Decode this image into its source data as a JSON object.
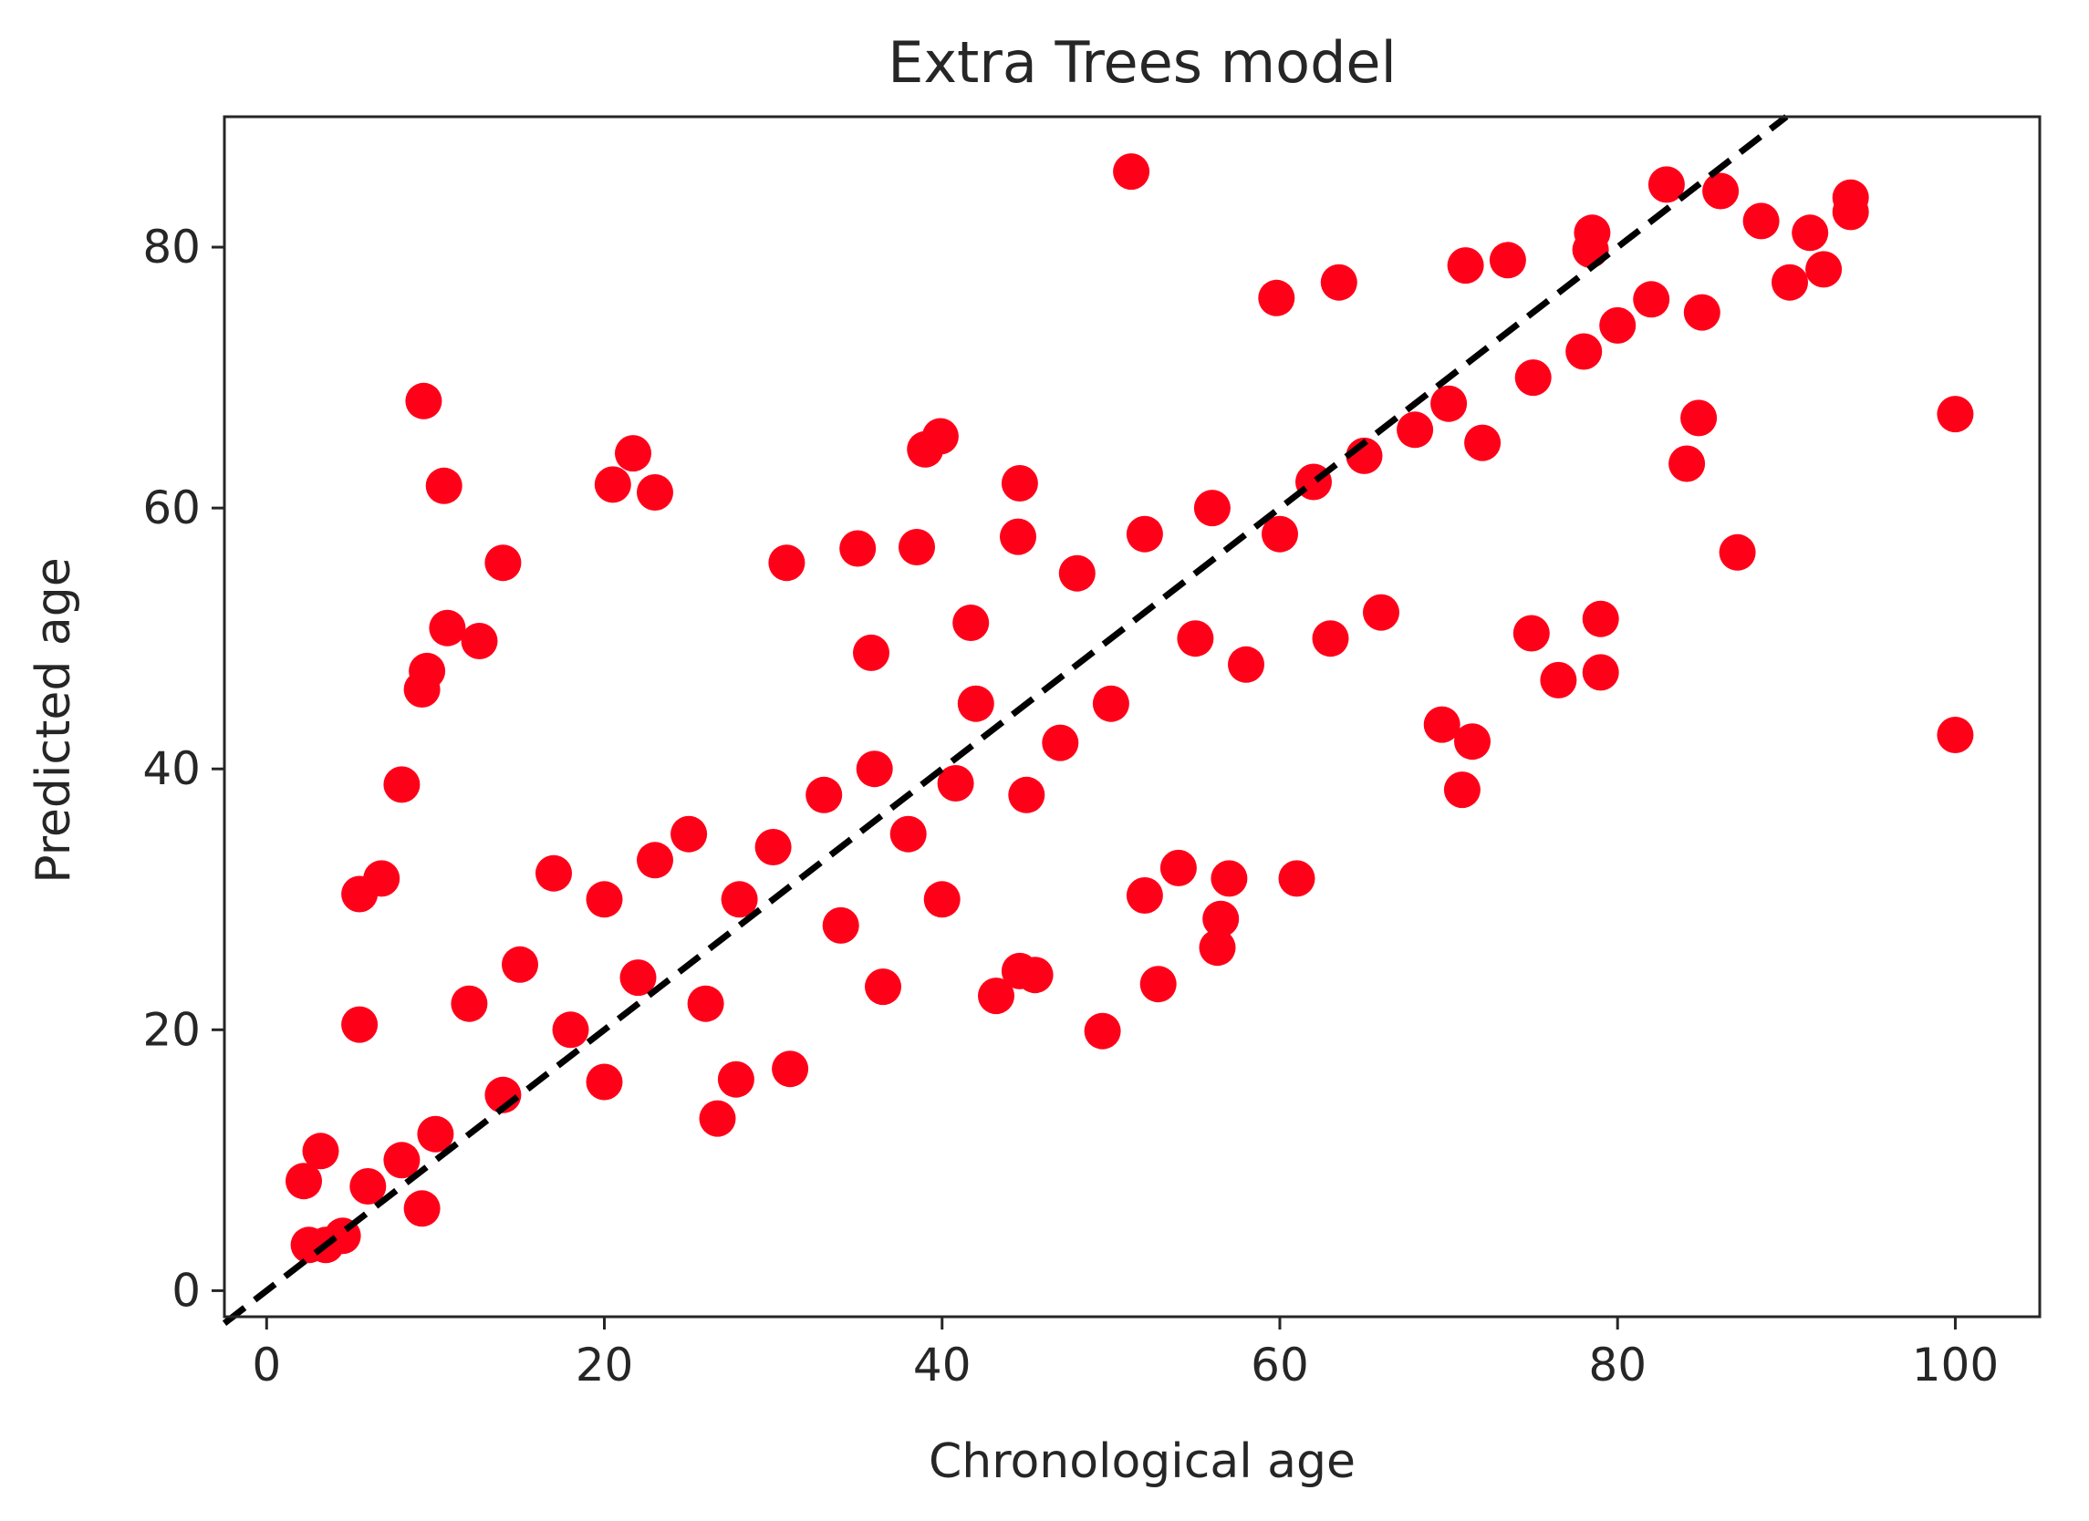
{
  "chart_data": {
    "type": "scatter",
    "title": "Extra Trees model",
    "xlabel": "Chronological age",
    "ylabel": "Predicted age",
    "xlim": [
      -2.5,
      105
    ],
    "ylim": [
      -2,
      90
    ],
    "xticks": [
      0,
      20,
      40,
      60,
      80,
      100
    ],
    "yticks": [
      0,
      20,
      40,
      60,
      80
    ],
    "grid": false,
    "legend": "none",
    "point_color": "#ff0019",
    "reference_line": {
      "style": "dashed",
      "color": "#000000",
      "from": [
        -2.5,
        -2.5
      ],
      "to": [
        90,
        90
      ]
    },
    "series": [
      {
        "points": [
          [
            9.3,
            68.2
          ],
          [
            10.5,
            61.7
          ],
          [
            21.7,
            64.2
          ],
          [
            20.5,
            61.8
          ],
          [
            23.0,
            61.2
          ],
          [
            14.0,
            55.8
          ],
          [
            51.2,
            85.8
          ],
          [
            100.0,
            67.2
          ],
          [
            100.0,
            42.6
          ],
          [
            87.1,
            56.6
          ],
          [
            84.1,
            63.4
          ],
          [
            84.8,
            66.9
          ],
          [
            30.8,
            55.8
          ],
          [
            35.0,
            56.9
          ],
          [
            38.5,
            57.0
          ],
          [
            39.0,
            64.5
          ],
          [
            39.9,
            65.5
          ],
          [
            49.5,
            19.9
          ],
          [
            52.8,
            23.5
          ],
          [
            56.3,
            26.3
          ],
          [
            56.5,
            28.5
          ],
          [
            31.0,
            17.0
          ],
          [
            27.8,
            16.2
          ],
          [
            26.7,
            13.2
          ],
          [
            9.2,
            6.3
          ],
          [
            2.5,
            3.5
          ],
          [
            3.5,
            3.5
          ],
          [
            4.5,
            4.2
          ],
          [
            2.2,
            8.4
          ],
          [
            3.2,
            10.7
          ],
          [
            5.5,
            20.4
          ],
          [
            5.5,
            30.4
          ],
          [
            6.8,
            31.6
          ],
          [
            9.2,
            46.1
          ],
          [
            9.5,
            47.5
          ],
          [
            10.7,
            50.8
          ],
          [
            12.6,
            49.8
          ],
          [
            8.0,
            38.8
          ],
          [
            93.8,
            83.8
          ],
          [
            93.8,
            82.7
          ],
          [
            86.1,
            84.3
          ],
          [
            88.5,
            82.0
          ],
          [
            91.4,
            81.1
          ],
          [
            90.2,
            77.3
          ],
          [
            92.2,
            78.3
          ],
          [
            82.9,
            84.8
          ],
          [
            78.5,
            81.1
          ],
          [
            79.0,
            47.4
          ],
          [
            76.5,
            46.8
          ],
          [
            79.0,
            51.5
          ],
          [
            74.9,
            50.4
          ],
          [
            70.8,
            38.4
          ],
          [
            71.4,
            42.1
          ],
          [
            69.6,
            43.4
          ],
          [
            61.0,
            31.6
          ],
          [
            57.0,
            31.6
          ],
          [
            54.0,
            32.4
          ],
          [
            52.0,
            30.3
          ],
          [
            36.5,
            23.3
          ],
          [
            43.2,
            22.6
          ],
          [
            44.6,
            24.5
          ],
          [
            45.5,
            24.2
          ],
          [
            40.8,
            38.9
          ],
          [
            35.8,
            48.9
          ],
          [
            41.7,
            51.2
          ],
          [
            44.5,
            57.8
          ],
          [
            44.6,
            61.9
          ],
          [
            59.8,
            76.1
          ],
          [
            63.5,
            77.3
          ],
          [
            71.0,
            78.6
          ],
          [
            73.5,
            79.0
          ],
          [
            78.4,
            79.8
          ],
          [
            17.0,
            32.0
          ],
          [
            20.0,
            30.0
          ],
          [
            23.0,
            33.0
          ],
          [
            25.0,
            35.0
          ],
          [
            15.0,
            25.0
          ],
          [
            12.0,
            22.0
          ],
          [
            18.0,
            20.0
          ],
          [
            22.0,
            24.0
          ],
          [
            28.0,
            30.0
          ],
          [
            30.0,
            34.0
          ],
          [
            33.0,
            38.0
          ],
          [
            36.0,
            40.0
          ],
          [
            38.0,
            35.0
          ],
          [
            42.0,
            45.0
          ],
          [
            48.0,
            55.0
          ],
          [
            52.0,
            58.0
          ],
          [
            56.0,
            60.0
          ],
          [
            60.0,
            58.0
          ],
          [
            62.0,
            62.0
          ],
          [
            65.0,
            64.0
          ],
          [
            68.0,
            66.0
          ],
          [
            70.0,
            68.0
          ],
          [
            72.0,
            65.0
          ],
          [
            75.0,
            70.0
          ],
          [
            78.0,
            72.0
          ],
          [
            80.0,
            74.0
          ],
          [
            82.0,
            76.0
          ],
          [
            85.0,
            75.0
          ],
          [
            55.0,
            50.0
          ],
          [
            58.0,
            48.0
          ],
          [
            63.0,
            50.0
          ],
          [
            66.0,
            52.0
          ],
          [
            50.0,
            45.0
          ],
          [
            47.0,
            42.0
          ],
          [
            45.0,
            38.0
          ],
          [
            40.0,
            30.0
          ],
          [
            34.0,
            28.0
          ],
          [
            26.0,
            22.0
          ],
          [
            20.0,
            16.0
          ],
          [
            14.0,
            15.0
          ],
          [
            10.0,
            12.0
          ],
          [
            8.0,
            10.0
          ],
          [
            6.0,
            8.0
          ]
        ]
      }
    ]
  }
}
